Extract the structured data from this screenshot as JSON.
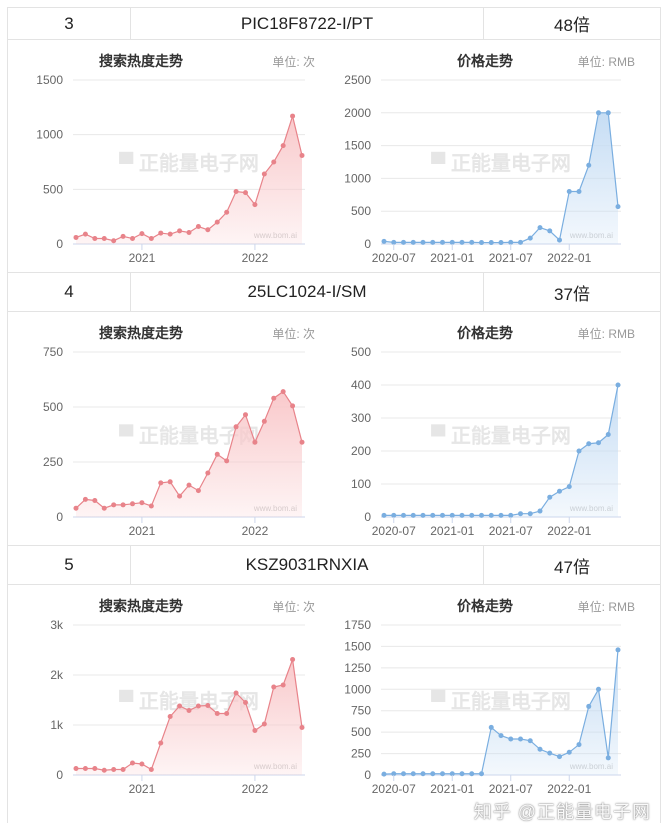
{
  "rows": [
    {
      "index": "3",
      "part": "PIC18F8722-I/PT",
      "multiple": "48倍"
    },
    {
      "index": "4",
      "part": "25LC1024-I/SM",
      "multiple": "37倍"
    },
    {
      "index": "5",
      "part": "KSZ9031RNXIA",
      "multiple": "47倍"
    }
  ],
  "watermark_text": "知乎 @正能量电子网",
  "chart_watermark": "正能量电子网",
  "chart_site": "www.bom.ai",
  "colors": {
    "search": "#e8838a",
    "search_fill": "#f9c9cb",
    "price": "#7aaee0",
    "price_fill": "#c6ddf4",
    "grid": "#e8e8e8"
  },
  "chart_data": [
    {
      "type": "area",
      "title": "搜索热度走势",
      "unit": "单位: 次",
      "x": [
        "2020-06",
        "2020-07",
        "2020-08",
        "2020-09",
        "2020-10",
        "2020-11",
        "2020-12",
        "2021-01",
        "2021-02",
        "2021-03",
        "2021-04",
        "2021-05",
        "2021-06",
        "2021-07",
        "2021-08",
        "2021-09",
        "2021-10",
        "2021-11",
        "2021-12",
        "2022-01",
        "2022-02",
        "2022-03",
        "2022-04",
        "2022-05",
        "2022-06"
      ],
      "xticks": [
        "2021",
        "2022"
      ],
      "xtick_months": [
        "2021-01",
        "2022-01"
      ],
      "yticks": [
        "0",
        "500",
        "1000",
        "1500"
      ],
      "ylim": [
        0,
        1500
      ],
      "values": [
        60,
        90,
        50,
        50,
        30,
        70,
        50,
        95,
        50,
        100,
        90,
        120,
        105,
        160,
        130,
        200,
        290,
        480,
        470,
        360,
        640,
        750,
        900,
        1170,
        810
      ]
    },
    {
      "type": "area",
      "title": "价格走势",
      "unit": "单位: RMB",
      "x": [
        "2020-06",
        "2020-07",
        "2020-08",
        "2020-09",
        "2020-10",
        "2020-11",
        "2020-12",
        "2021-01",
        "2021-02",
        "2021-03",
        "2021-04",
        "2021-05",
        "2021-06",
        "2021-07",
        "2021-08",
        "2021-09",
        "2021-10",
        "2021-11",
        "2021-12",
        "2022-01",
        "2022-02",
        "2022-03",
        "2022-04",
        "2022-05",
        "2022-06"
      ],
      "xticks": [
        "2020-07",
        "2021-01",
        "2021-07",
        "2022-01"
      ],
      "xtick_months": [
        "2020-07",
        "2021-01",
        "2021-07",
        "2022-01"
      ],
      "yticks": [
        "0",
        "500",
        "1000",
        "1500",
        "2000",
        "2500"
      ],
      "ylim": [
        0,
        2500
      ],
      "values": [
        40,
        25,
        25,
        25,
        25,
        25,
        25,
        25,
        25,
        25,
        22,
        22,
        22,
        25,
        25,
        90,
        250,
        200,
        60,
        800,
        800,
        1200,
        2000,
        2000,
        570
      ]
    },
    {
      "type": "area",
      "title": "搜索热度走势",
      "unit": "单位: 次",
      "x": [
        "2020-06",
        "2020-07",
        "2020-08",
        "2020-09",
        "2020-10",
        "2020-11",
        "2020-12",
        "2021-01",
        "2021-02",
        "2021-03",
        "2021-04",
        "2021-05",
        "2021-06",
        "2021-07",
        "2021-08",
        "2021-09",
        "2021-10",
        "2021-11",
        "2021-12",
        "2022-01",
        "2022-02",
        "2022-03",
        "2022-04",
        "2022-05",
        "2022-06"
      ],
      "xticks": [
        "2021",
        "2022"
      ],
      "xtick_months": [
        "2021-01",
        "2022-01"
      ],
      "yticks": [
        "0",
        "250",
        "500",
        "750"
      ],
      "ylim": [
        0,
        750
      ],
      "values": [
        40,
        80,
        75,
        40,
        55,
        55,
        60,
        65,
        50,
        155,
        160,
        95,
        145,
        120,
        200,
        285,
        255,
        410,
        465,
        340,
        435,
        540,
        570,
        505,
        340
      ]
    },
    {
      "type": "area",
      "title": "价格走势",
      "unit": "单位: RMB",
      "x": [
        "2020-06",
        "2020-07",
        "2020-08",
        "2020-09",
        "2020-10",
        "2020-11",
        "2020-12",
        "2021-01",
        "2021-02",
        "2021-03",
        "2021-04",
        "2021-05",
        "2021-06",
        "2021-07",
        "2021-08",
        "2021-09",
        "2021-10",
        "2021-11",
        "2021-12",
        "2022-01",
        "2022-02",
        "2022-03",
        "2022-04",
        "2022-05",
        "2022-06"
      ],
      "xticks": [
        "2020-07",
        "2021-01",
        "2021-07",
        "2022-01"
      ],
      "xtick_months": [
        "2020-07",
        "2021-01",
        "2021-07",
        "2022-01"
      ],
      "yticks": [
        "0",
        "100",
        "200",
        "300",
        "400",
        "500"
      ],
      "ylim": [
        0,
        500
      ],
      "values": [
        5,
        5,
        5,
        5,
        5,
        5,
        5,
        5,
        5,
        5,
        5,
        5,
        5,
        5,
        10,
        10,
        18,
        60,
        78,
        92,
        200,
        222,
        225,
        250,
        400
      ]
    },
    {
      "type": "area",
      "title": "搜索热度走势",
      "unit": "单位: 次",
      "x": [
        "2020-06",
        "2020-07",
        "2020-08",
        "2020-09",
        "2020-10",
        "2020-11",
        "2020-12",
        "2021-01",
        "2021-02",
        "2021-03",
        "2021-04",
        "2021-05",
        "2021-06",
        "2021-07",
        "2021-08",
        "2021-09",
        "2021-10",
        "2021-11",
        "2021-12",
        "2022-01",
        "2022-02",
        "2022-03",
        "2022-04",
        "2022-05",
        "2022-06"
      ],
      "xticks": [
        "2021",
        "2022"
      ],
      "xtick_months": [
        "2021-01",
        "2022-01"
      ],
      "yticks": [
        "0",
        "1k",
        "2k",
        "3k"
      ],
      "ylim": [
        0,
        3000
      ],
      "values": [
        130,
        130,
        130,
        95,
        110,
        110,
        240,
        220,
        110,
        640,
        1170,
        1380,
        1290,
        1380,
        1390,
        1230,
        1230,
        1640,
        1450,
        890,
        1020,
        1760,
        1800,
        2310,
        950
      ]
    },
    {
      "type": "area",
      "title": "价格走势",
      "unit": "单位: RMB",
      "x": [
        "2020-06",
        "2020-07",
        "2020-08",
        "2020-09",
        "2020-10",
        "2020-11",
        "2020-12",
        "2021-01",
        "2021-02",
        "2021-03",
        "2021-04",
        "2021-05",
        "2021-06",
        "2021-07",
        "2021-08",
        "2021-09",
        "2021-10",
        "2021-11",
        "2021-12",
        "2022-01",
        "2022-02",
        "2022-03",
        "2022-04",
        "2022-05",
        "2022-06"
      ],
      "xticks": [
        "2020-07",
        "2021-01",
        "2021-07",
        "2022-01"
      ],
      "xtick_months": [
        "2020-07",
        "2021-01",
        "2021-07",
        "2022-01"
      ],
      "yticks": [
        "0",
        "250",
        "500",
        "750",
        "1000",
        "1250",
        "1500",
        "1750"
      ],
      "ylim": [
        0,
        1750
      ],
      "values": [
        10,
        15,
        15,
        15,
        15,
        15,
        15,
        15,
        15,
        15,
        15,
        555,
        460,
        420,
        420,
        400,
        300,
        255,
        215,
        265,
        355,
        800,
        1000,
        200,
        1460
      ]
    }
  ]
}
